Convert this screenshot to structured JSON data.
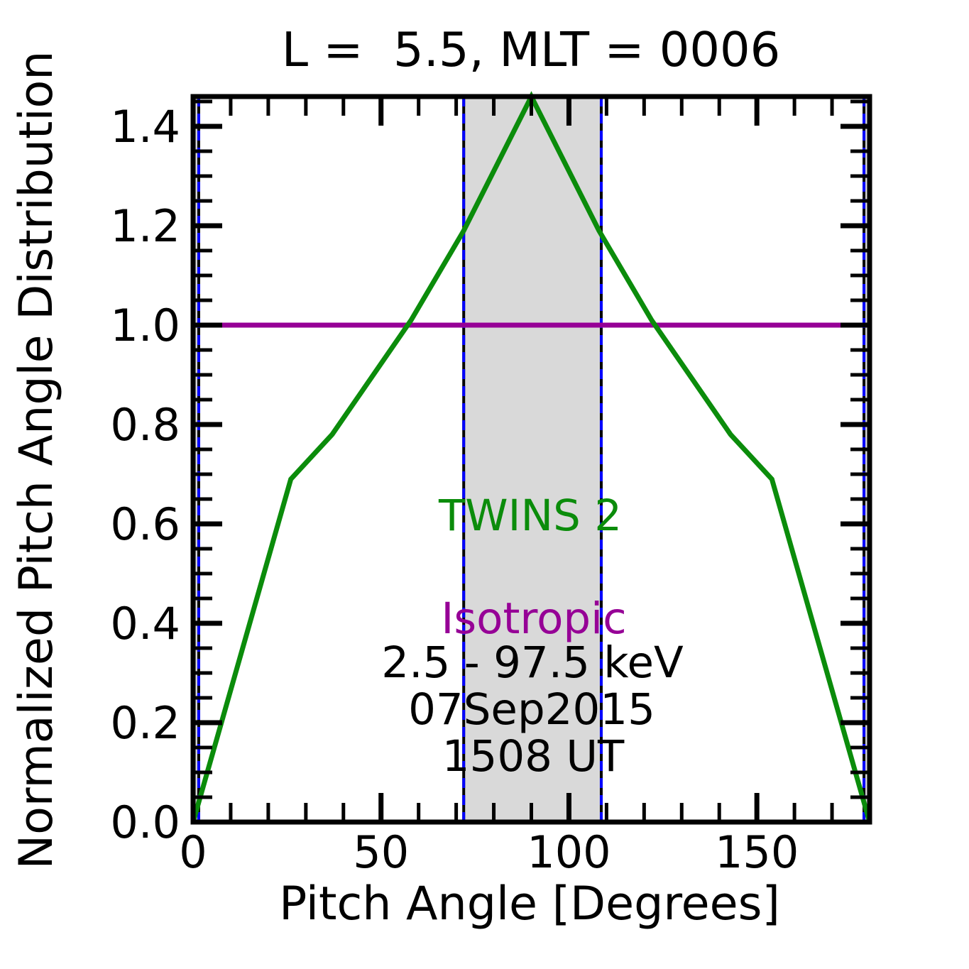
{
  "title": {
    "text": "L =  5.5, MLT = 0006"
  },
  "axes": {
    "x": {
      "label": "Pitch Angle [Degrees]",
      "min": 0,
      "max": 180,
      "major_ticks": [
        0,
        50,
        100,
        150
      ],
      "major_tick_labels": [
        "0",
        "50",
        "100",
        "150"
      ],
      "minor_step": 10
    },
    "y": {
      "label": "Normalized Pitch Angle Distribution",
      "min": 0.0,
      "max": 1.46,
      "major_ticks": [
        0.0,
        0.2,
        0.4,
        0.6,
        0.8,
        1.0,
        1.2,
        1.4
      ],
      "major_tick_labels": [
        "0.0",
        "0.2",
        "0.4",
        "0.6",
        "0.8",
        "1.0",
        "1.2",
        "1.4"
      ],
      "minor_step": 0.05
    }
  },
  "chart_data": {
    "type": "line",
    "title": "L =  5.5, MLT = 0006",
    "xlabel": "Pitch Angle [Degrees]",
    "ylabel": "Normalized Pitch Angle Distribution",
    "xlim": [
      0,
      180
    ],
    "ylim": [
      0,
      1.46
    ],
    "grid": false,
    "legend_position": "none (inline colored text annotations)",
    "series": [
      {
        "name": "TWINS 2",
        "color": "#0b8c0b",
        "line_width": 7,
        "x": [
          0,
          26,
          37,
          58,
          72,
          90,
          108,
          122,
          143,
          154,
          180
        ],
        "y": [
          0.0,
          0.69,
          0.78,
          1.01,
          1.19,
          1.46,
          1.19,
          1.01,
          0.78,
          0.69,
          0.0
        ]
      },
      {
        "name": "Isotropic",
        "color": "#960096",
        "line_width": 7,
        "x": [
          0,
          180
        ],
        "y": [
          1.0,
          1.0
        ]
      }
    ],
    "shaded_bands": [
      {
        "x0": 0,
        "x1": 1.5,
        "fill": "#d9d9d9"
      },
      {
        "x0": 72,
        "x1": 108.6,
        "fill": "#d9d9d9"
      },
      {
        "x0": 178.5,
        "x1": 180,
        "fill": "#d9d9d9"
      }
    ],
    "band_edge_lines": {
      "positions": [
        1.5,
        72,
        108.6,
        178.5
      ],
      "solid_color": "#000000",
      "dashed_color": "#0000ff"
    }
  },
  "annotations": {
    "twins2": {
      "text": "TWINS 2",
      "color": "#0b8c0b"
    },
    "isotropic": {
      "text": "Isotropic",
      "color": "#960096"
    },
    "energy_range": {
      "text": "2.5 - 97.5 keV",
      "color": "#000000"
    },
    "date": {
      "text": "07Sep2015",
      "color": "#000000"
    },
    "time": {
      "text": "1508 UT",
      "color": "#000000"
    }
  },
  "colors": {
    "frame": "#000000",
    "background": "#ffffff",
    "band_fill": "#d9d9d9",
    "band_dash": "#0000ff"
  }
}
